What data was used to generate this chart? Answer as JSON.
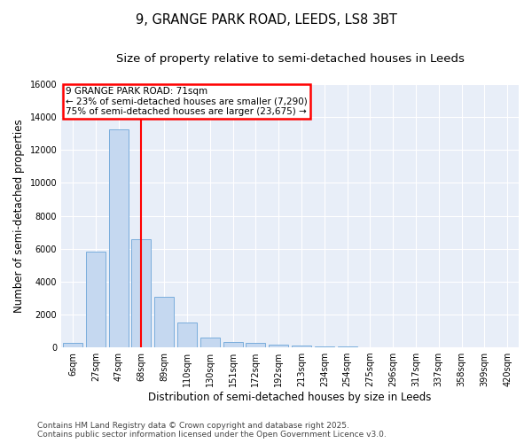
{
  "title_line1": "9, GRANGE PARK ROAD, LEEDS, LS8 3BT",
  "title_line2": "Size of property relative to semi-detached houses in Leeds",
  "xlabel": "Distribution of semi-detached houses by size in Leeds",
  "ylabel": "Number of semi-detached properties",
  "categories": [
    "6sqm",
    "27sqm",
    "47sqm",
    "68sqm",
    "89sqm",
    "110sqm",
    "130sqm",
    "151sqm",
    "172sqm",
    "192sqm",
    "213sqm",
    "234sqm",
    "254sqm",
    "275sqm",
    "296sqm",
    "317sqm",
    "337sqm",
    "358sqm",
    "399sqm",
    "420sqm"
  ],
  "values": [
    300,
    5800,
    13250,
    6550,
    3050,
    1500,
    600,
    350,
    270,
    170,
    120,
    50,
    80,
    0,
    0,
    0,
    0,
    0,
    0,
    0
  ],
  "bar_color": "#c5d8f0",
  "bar_edge_color": "#7aaddc",
  "vline_index": 3,
  "vline_color": "red",
  "annotation_title": "9 GRANGE PARK ROAD: 71sqm",
  "annotation_line1": "← 23% of semi-detached houses are smaller (7,290)",
  "annotation_line2": "75% of semi-detached houses are larger (23,675) →",
  "annotation_box_color": "red",
  "ylim": [
    0,
    16000
  ],
  "yticks": [
    0,
    2000,
    4000,
    6000,
    8000,
    10000,
    12000,
    14000,
    16000
  ],
  "background_color": "#e8eef8",
  "grid_color": "white",
  "footer_line1": "Contains HM Land Registry data © Crown copyright and database right 2025.",
  "footer_line2": "Contains public sector information licensed under the Open Government Licence v3.0.",
  "title_fontsize": 10.5,
  "subtitle_fontsize": 9.5,
  "axis_label_fontsize": 8.5,
  "tick_fontsize": 7,
  "annotation_fontsize": 7.5,
  "footer_fontsize": 6.5
}
